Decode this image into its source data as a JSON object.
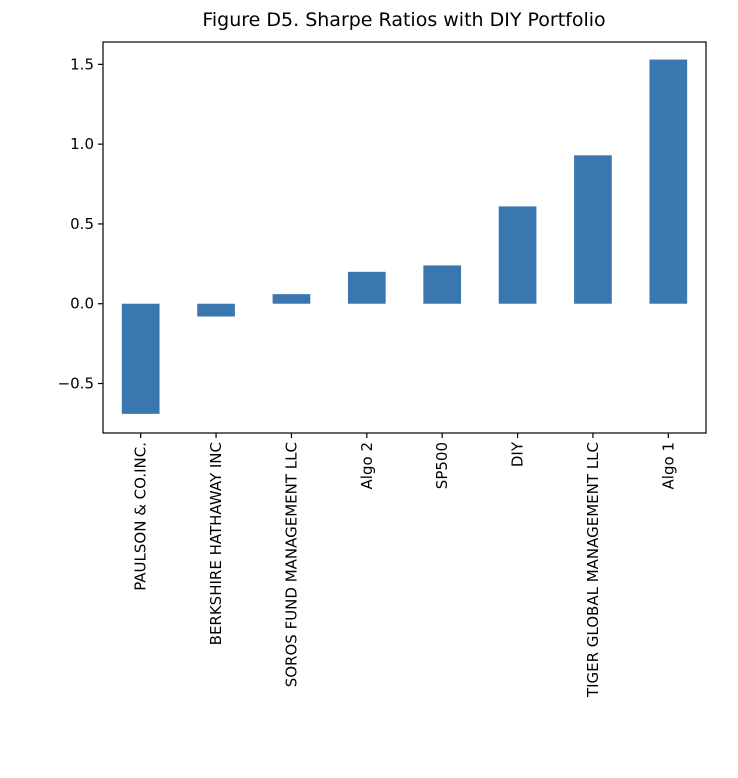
{
  "chart_data": {
    "type": "bar",
    "title": "Figure D5. Sharpe Ratios with DIY Portfolio",
    "xlabel": "",
    "ylabel": "",
    "categories": [
      "PAULSON & CO.INC.",
      "BERKSHIRE HATHAWAY INC",
      "SOROS FUND MANAGEMENT LLC",
      "Algo 2",
      "SP500",
      "DIY",
      "TIGER GLOBAL MANAGEMENT LLC",
      "Algo 1"
    ],
    "values": [
      -0.69,
      -0.08,
      0.06,
      0.2,
      0.24,
      0.61,
      0.93,
      1.53
    ],
    "ylim": [
      -0.81,
      1.64
    ],
    "yticks": [
      -0.5,
      0.0,
      0.5,
      1.0,
      1.5
    ],
    "ytick_labels": [
      "−0.5",
      "0.0",
      "0.5",
      "1.0",
      "1.5"
    ],
    "bar_color": "#3a76af",
    "grid": false,
    "legend": "none"
  }
}
